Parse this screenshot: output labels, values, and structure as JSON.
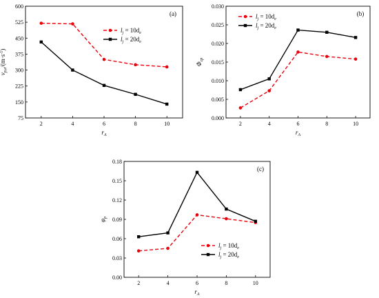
{
  "chart_data": [
    {
      "type": "line",
      "panel_label": "(a)",
      "xlabel": "r",
      "xlabel_sub": "A",
      "ylabel_var": "v",
      "ylabel_sub": "p,a",
      "ylabel_unit": "/(m·s",
      "ylabel_unit_sup": "-1",
      "ylabel_unit_close": ")",
      "x": [
        2,
        4,
        6,
        8,
        10
      ],
      "xlim": [
        1,
        11
      ],
      "xticks": [
        "2",
        "4",
        "6",
        "8",
        "10"
      ],
      "ylim": [
        75,
        600
      ],
      "yticks": [
        "75",
        "150",
        "225",
        "300",
        "375",
        "450",
        "525",
        "600"
      ],
      "legend_position": "top-right",
      "series": [
        {
          "name": "l",
          "name_sub": "j",
          "name_rest": " = 10d",
          "name_rest_sub": "e",
          "color": "#e8000b",
          "dashed": true,
          "marker": "circle",
          "values": [
            520,
            517,
            350,
            325,
            315
          ]
        },
        {
          "name": "l",
          "name_sub": "j",
          "name_rest": " = 20d",
          "name_rest_sub": "e",
          "color": "#000000",
          "dashed": false,
          "marker": "square",
          "values": [
            432,
            300,
            228,
            186,
            140
          ]
        }
      ]
    },
    {
      "type": "line",
      "panel_label": "(b)",
      "xlabel": "r",
      "xlabel_sub": "A",
      "ylabel_var": "Φ",
      "ylabel_sub": "cp",
      "ylabel_unit": "",
      "ylabel_unit_sup": "",
      "ylabel_unit_close": "",
      "x": [
        2,
        4,
        6,
        8,
        10
      ],
      "xlim": [
        1,
        11
      ],
      "xticks": [
        "2",
        "4",
        "6",
        "8",
        "10"
      ],
      "ylim": [
        0,
        0.03
      ],
      "yticks": [
        "0.000",
        "0.005",
        "0.010",
        "0.015",
        "0.020",
        "0.025",
        "0.030"
      ],
      "legend_position": "top-left",
      "series": [
        {
          "name": "l",
          "name_sub": "j",
          "name_rest": " = 10d",
          "name_rest_sub": "e",
          "color": "#e8000b",
          "dashed": true,
          "marker": "circle",
          "values": [
            0.0027,
            0.0073,
            0.0177,
            0.0165,
            0.0158
          ]
        },
        {
          "name": "l",
          "name_sub": "j",
          "name_rest": " = 20d",
          "name_rest_sub": "e",
          "color": "#000000",
          "dashed": false,
          "marker": "square",
          "values": [
            0.0076,
            0.0105,
            0.0236,
            0.023,
            0.0216
          ]
        }
      ]
    },
    {
      "type": "line",
      "panel_label": "(c)",
      "xlabel": "r",
      "xlabel_sub": "A",
      "ylabel_var": "φ",
      "ylabel_sub": "p",
      "ylabel_unit": "",
      "ylabel_unit_sup": "",
      "ylabel_unit_close": "",
      "x": [
        2,
        4,
        6,
        8,
        10
      ],
      "xlim": [
        1,
        11
      ],
      "xticks": [
        "2",
        "4",
        "6",
        "8",
        "10"
      ],
      "ylim": [
        0,
        0.18
      ],
      "yticks": [
        "0.00",
        "0.03",
        "0.06",
        "0.09",
        "0.12",
        "0.15",
        "0.18"
      ],
      "legend_position": "bottom-left",
      "series": [
        {
          "name": "l",
          "name_sub": "j",
          "name_rest": " = 10d",
          "name_rest_sub": "e",
          "color": "#e8000b",
          "dashed": true,
          "marker": "circle",
          "values": [
            0.041,
            0.045,
            0.097,
            0.091,
            0.085
          ]
        },
        {
          "name": "l",
          "name_sub": "j",
          "name_rest": " = 20d",
          "name_rest_sub": "e",
          "color": "#000000",
          "dashed": false,
          "marker": "square",
          "values": [
            0.063,
            0.069,
            0.163,
            0.106,
            0.087
          ]
        }
      ]
    }
  ]
}
